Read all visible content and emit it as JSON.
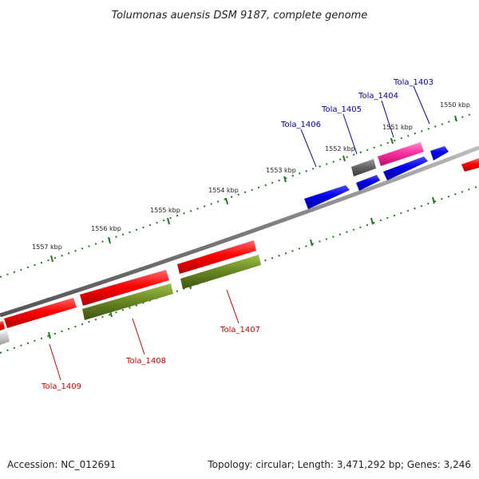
{
  "header": {
    "title": "Tolumonas auensis DSM 9187, complete genome"
  },
  "footer": {
    "accession": "Accession: NC_012691",
    "topology": "Topology: circular; Length: 3,471,292 bp; Genes: 3,246"
  },
  "colors": {
    "backbone": "#888888",
    "tick": "#1e7a1e",
    "forward_gene": "#ff0000",
    "reverse_gene": "#6b8a23",
    "blue_gene": "#0000ee",
    "pink_gene": "#ff2fa0",
    "grey_gene": "#666666",
    "label_red": "#cc0000",
    "label_blue": "#0000aa"
  },
  "scale_labels": [
    "1550 kbp",
    "1551 kbp",
    "1552 kbp",
    "1553 kbp",
    "1554 kbp",
    "1555 kbp",
    "1556 kbp",
    "1557 kbp"
  ],
  "gene_labels": [
    "Tola_1403",
    "Tola_1404",
    "Tola_1405",
    "Tola_1406",
    "Tola_1407",
    "Tola_1408",
    "Tola_1409"
  ]
}
